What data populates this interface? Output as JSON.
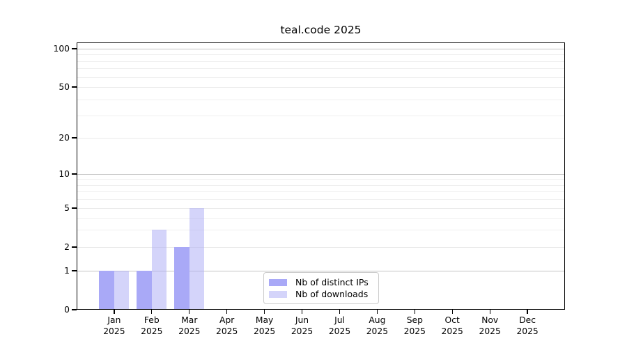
{
  "chart_data": {
    "type": "bar",
    "title": "teal.code 2025",
    "categories": [
      "Jan 2025",
      "Feb 2025",
      "Mar 2025",
      "Apr 2025",
      "May 2025",
      "Jun 2025",
      "Jul 2025",
      "Aug 2025",
      "Sep 2025",
      "Oct 2025",
      "Nov 2025",
      "Dec 2025"
    ],
    "series": [
      {
        "name": "Nb of distinct IPs",
        "color": "#a9a9f7",
        "values": [
          1,
          1,
          2,
          0,
          0,
          0,
          0,
          0,
          0,
          0,
          0,
          0
        ]
      },
      {
        "name": "Nb of downloads",
        "color": "rgba(170,170,245,0.5)",
        "values": [
          1,
          3,
          5,
          0,
          0,
          0,
          0,
          0,
          0,
          0,
          0,
          0
        ]
      }
    ],
    "yscale": "log-like (0,1,2,5,10,20,50,100)",
    "ylim": [
      0,
      100
    ],
    "yticks": [
      0,
      1,
      2,
      5,
      10,
      20,
      50,
      100
    ],
    "y_minor_gridlines": [
      3,
      4,
      6,
      7,
      8,
      9,
      30,
      40,
      60,
      70,
      80,
      90
    ],
    "grid": "horizontal",
    "legend_position": "inside-bottom-center"
  },
  "colors": {
    "bar_dark": "#a9a9f7",
    "bar_light": "#d9d9f8",
    "grid_decade": "#c2c2c2",
    "grid_light": "#ebebeb",
    "axis": "#000000",
    "legend_border": "#cccccc"
  }
}
